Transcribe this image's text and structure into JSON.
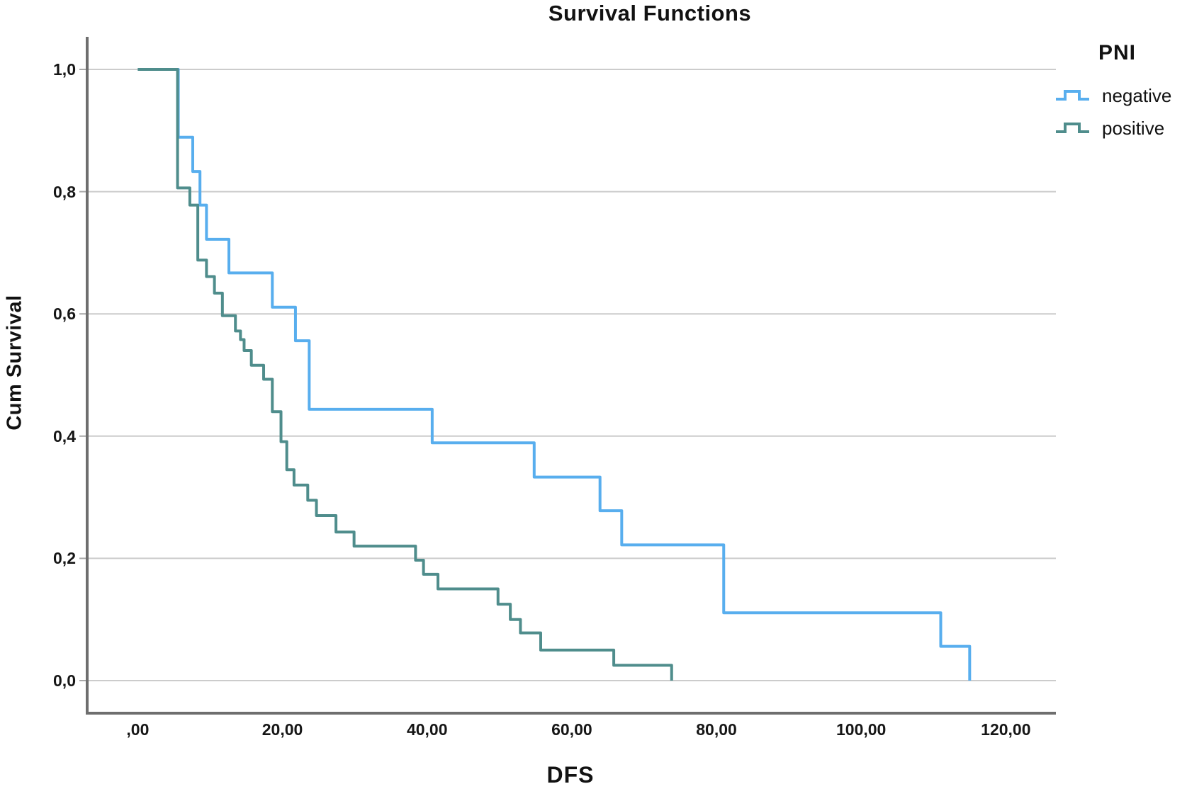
{
  "figure": {
    "title": "Survival Functions",
    "y_axis": {
      "label": "Cum Survival",
      "tick_labels": [
        "1,0",
        "0,8",
        "0,6",
        "0,4",
        "0,2",
        "0,0"
      ]
    },
    "x_axis": {
      "label": "DFS",
      "tick_labels": [
        ",00",
        "20,00",
        "40,00",
        "60,00",
        "80,00",
        "100,00",
        "120,00"
      ]
    },
    "legend": {
      "title": "PNI",
      "entries": [
        {
          "label": "negative",
          "color": "#58aeee"
        },
        {
          "label": "positive",
          "color": "#4f8d8c"
        }
      ]
    }
  },
  "colors": {
    "background": "#ffffff",
    "grid": "#cccccc",
    "axis": "#6e6e6e",
    "tick": "#a8a8a8",
    "text": "#121212",
    "negative": "#58aeee",
    "positive": "#4f8d8c"
  },
  "chart_data": {
    "type": "line",
    "subtype": "kaplan_meier_step",
    "title": "Survival Functions",
    "xlabel": "DFS",
    "ylabel": "Cum Survival",
    "xlim": [
      -7,
      127
    ],
    "ylim": [
      -0.053,
      1.053
    ],
    "x_ticks": [
      0,
      20,
      40,
      60,
      80,
      100,
      120
    ],
    "x_tick_labels": [
      ",00",
      "20,00",
      "40,00",
      "60,00",
      "80,00",
      "100,00",
      "120,00"
    ],
    "y_ticks": [
      1.0,
      0.8,
      0.6,
      0.4,
      0.2,
      0.0
    ],
    "y_tick_labels": [
      "1,0",
      "0,8",
      "0,6",
      "0,4",
      "0,2",
      "0,0"
    ],
    "grid": "horizontal-only",
    "legend_position": "outside-top-right",
    "legend_title": "PNI",
    "series": [
      {
        "name": "negative",
        "label": "negative",
        "color": "#58aeee",
        "steps": [
          [
            0,
            1.0
          ],
          [
            5.6,
            0.889
          ],
          [
            7.6,
            0.833
          ],
          [
            8.6,
            0.778
          ],
          [
            9.5,
            0.722
          ],
          [
            12.6,
            0.667
          ],
          [
            18.6,
            0.611
          ],
          [
            21.8,
            0.556
          ],
          [
            23.7,
            0.444
          ],
          [
            40.7,
            0.389
          ],
          [
            54.8,
            0.333
          ],
          [
            63.9,
            0.278
          ],
          [
            66.9,
            0.222
          ],
          [
            81.0,
            0.111
          ],
          [
            111.0,
            0.056
          ],
          [
            115.0,
            0.0
          ]
        ]
      },
      {
        "name": "positive",
        "label": "positive",
        "color": "#4f8d8c",
        "steps": [
          [
            0,
            1.0
          ],
          [
            5.5,
            0.806
          ],
          [
            7.2,
            0.778
          ],
          [
            8.3,
            0.688
          ],
          [
            9.5,
            0.661
          ],
          [
            10.6,
            0.634
          ],
          [
            11.7,
            0.597
          ],
          [
            13.5,
            0.572
          ],
          [
            14.2,
            0.558
          ],
          [
            14.7,
            0.54
          ],
          [
            15.7,
            0.516
          ],
          [
            17.4,
            0.493
          ],
          [
            18.6,
            0.44
          ],
          [
            19.8,
            0.391
          ],
          [
            20.6,
            0.345
          ],
          [
            21.6,
            0.32
          ],
          [
            23.5,
            0.295
          ],
          [
            24.7,
            0.27
          ],
          [
            27.4,
            0.243
          ],
          [
            29.9,
            0.22
          ],
          [
            38.4,
            0.197
          ],
          [
            39.5,
            0.174
          ],
          [
            41.5,
            0.15
          ],
          [
            49.8,
            0.125
          ],
          [
            51.5,
            0.1
          ],
          [
            52.9,
            0.078
          ],
          [
            55.7,
            0.05
          ],
          [
            65.8,
            0.025
          ],
          [
            73.8,
            0.0
          ]
        ]
      }
    ]
  }
}
